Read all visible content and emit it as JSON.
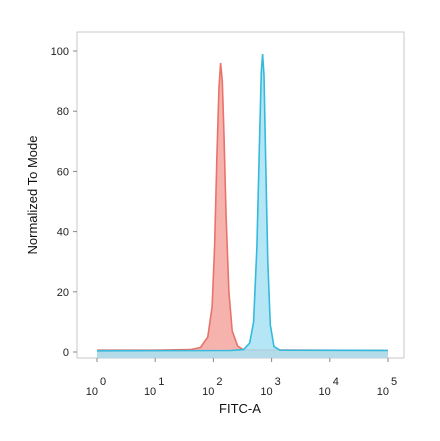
{
  "chart_data": {
    "type": "area",
    "title": "",
    "xlabel": "FITC-A",
    "ylabel": "Normalized To Mode",
    "x_scale": "log",
    "xlim": [
      1,
      100000
    ],
    "ylim": [
      0,
      100
    ],
    "x_ticks": [
      {
        "value": 1,
        "base": "10",
        "exp": "0"
      },
      {
        "value": 10,
        "base": "10",
        "exp": "1"
      },
      {
        "value": 100,
        "base": "10",
        "exp": "2"
      },
      {
        "value": 1000,
        "base": "10",
        "exp": "3"
      },
      {
        "value": 10000,
        "base": "10",
        "exp": "4"
      },
      {
        "value": 100000,
        "base": "10",
        "exp": "5"
      }
    ],
    "y_ticks": [
      {
        "value": 0,
        "label": "0"
      },
      {
        "value": 20,
        "label": "20"
      },
      {
        "value": 40,
        "label": "40"
      },
      {
        "value": 60,
        "label": "60"
      },
      {
        "value": 80,
        "label": "80"
      },
      {
        "value": 100,
        "label": "100"
      }
    ],
    "grid": false,
    "legend": "none",
    "series": [
      {
        "color": "#e8736b",
        "fill": "#f4a6a0",
        "points": [
          [
            1,
            0.6
          ],
          [
            10,
            0.6
          ],
          [
            40,
            0.8
          ],
          [
            60,
            1.5
          ],
          [
            80,
            5
          ],
          [
            95,
            15
          ],
          [
            105,
            35
          ],
          [
            115,
            65
          ],
          [
            125,
            88
          ],
          [
            133,
            96
          ],
          [
            142,
            90
          ],
          [
            152,
            72
          ],
          [
            165,
            45
          ],
          [
            185,
            20
          ],
          [
            210,
            7
          ],
          [
            260,
            2
          ],
          [
            330,
            0.7
          ],
          [
            100000,
            0.5
          ]
        ]
      },
      {
        "color": "#35b9dc",
        "fill": "#a8e2f4",
        "points": [
          [
            1,
            0.4
          ],
          [
            200,
            0.5
          ],
          [
            330,
            0.8
          ],
          [
            420,
            3
          ],
          [
            490,
            10
          ],
          [
            560,
            35
          ],
          [
            620,
            70
          ],
          [
            665,
            93
          ],
          [
            700,
            99
          ],
          [
            740,
            92
          ],
          [
            790,
            65
          ],
          [
            860,
            30
          ],
          [
            950,
            9
          ],
          [
            1100,
            1.8
          ],
          [
            1400,
            0.6
          ],
          [
            100000,
            0.5
          ]
        ]
      }
    ]
  }
}
